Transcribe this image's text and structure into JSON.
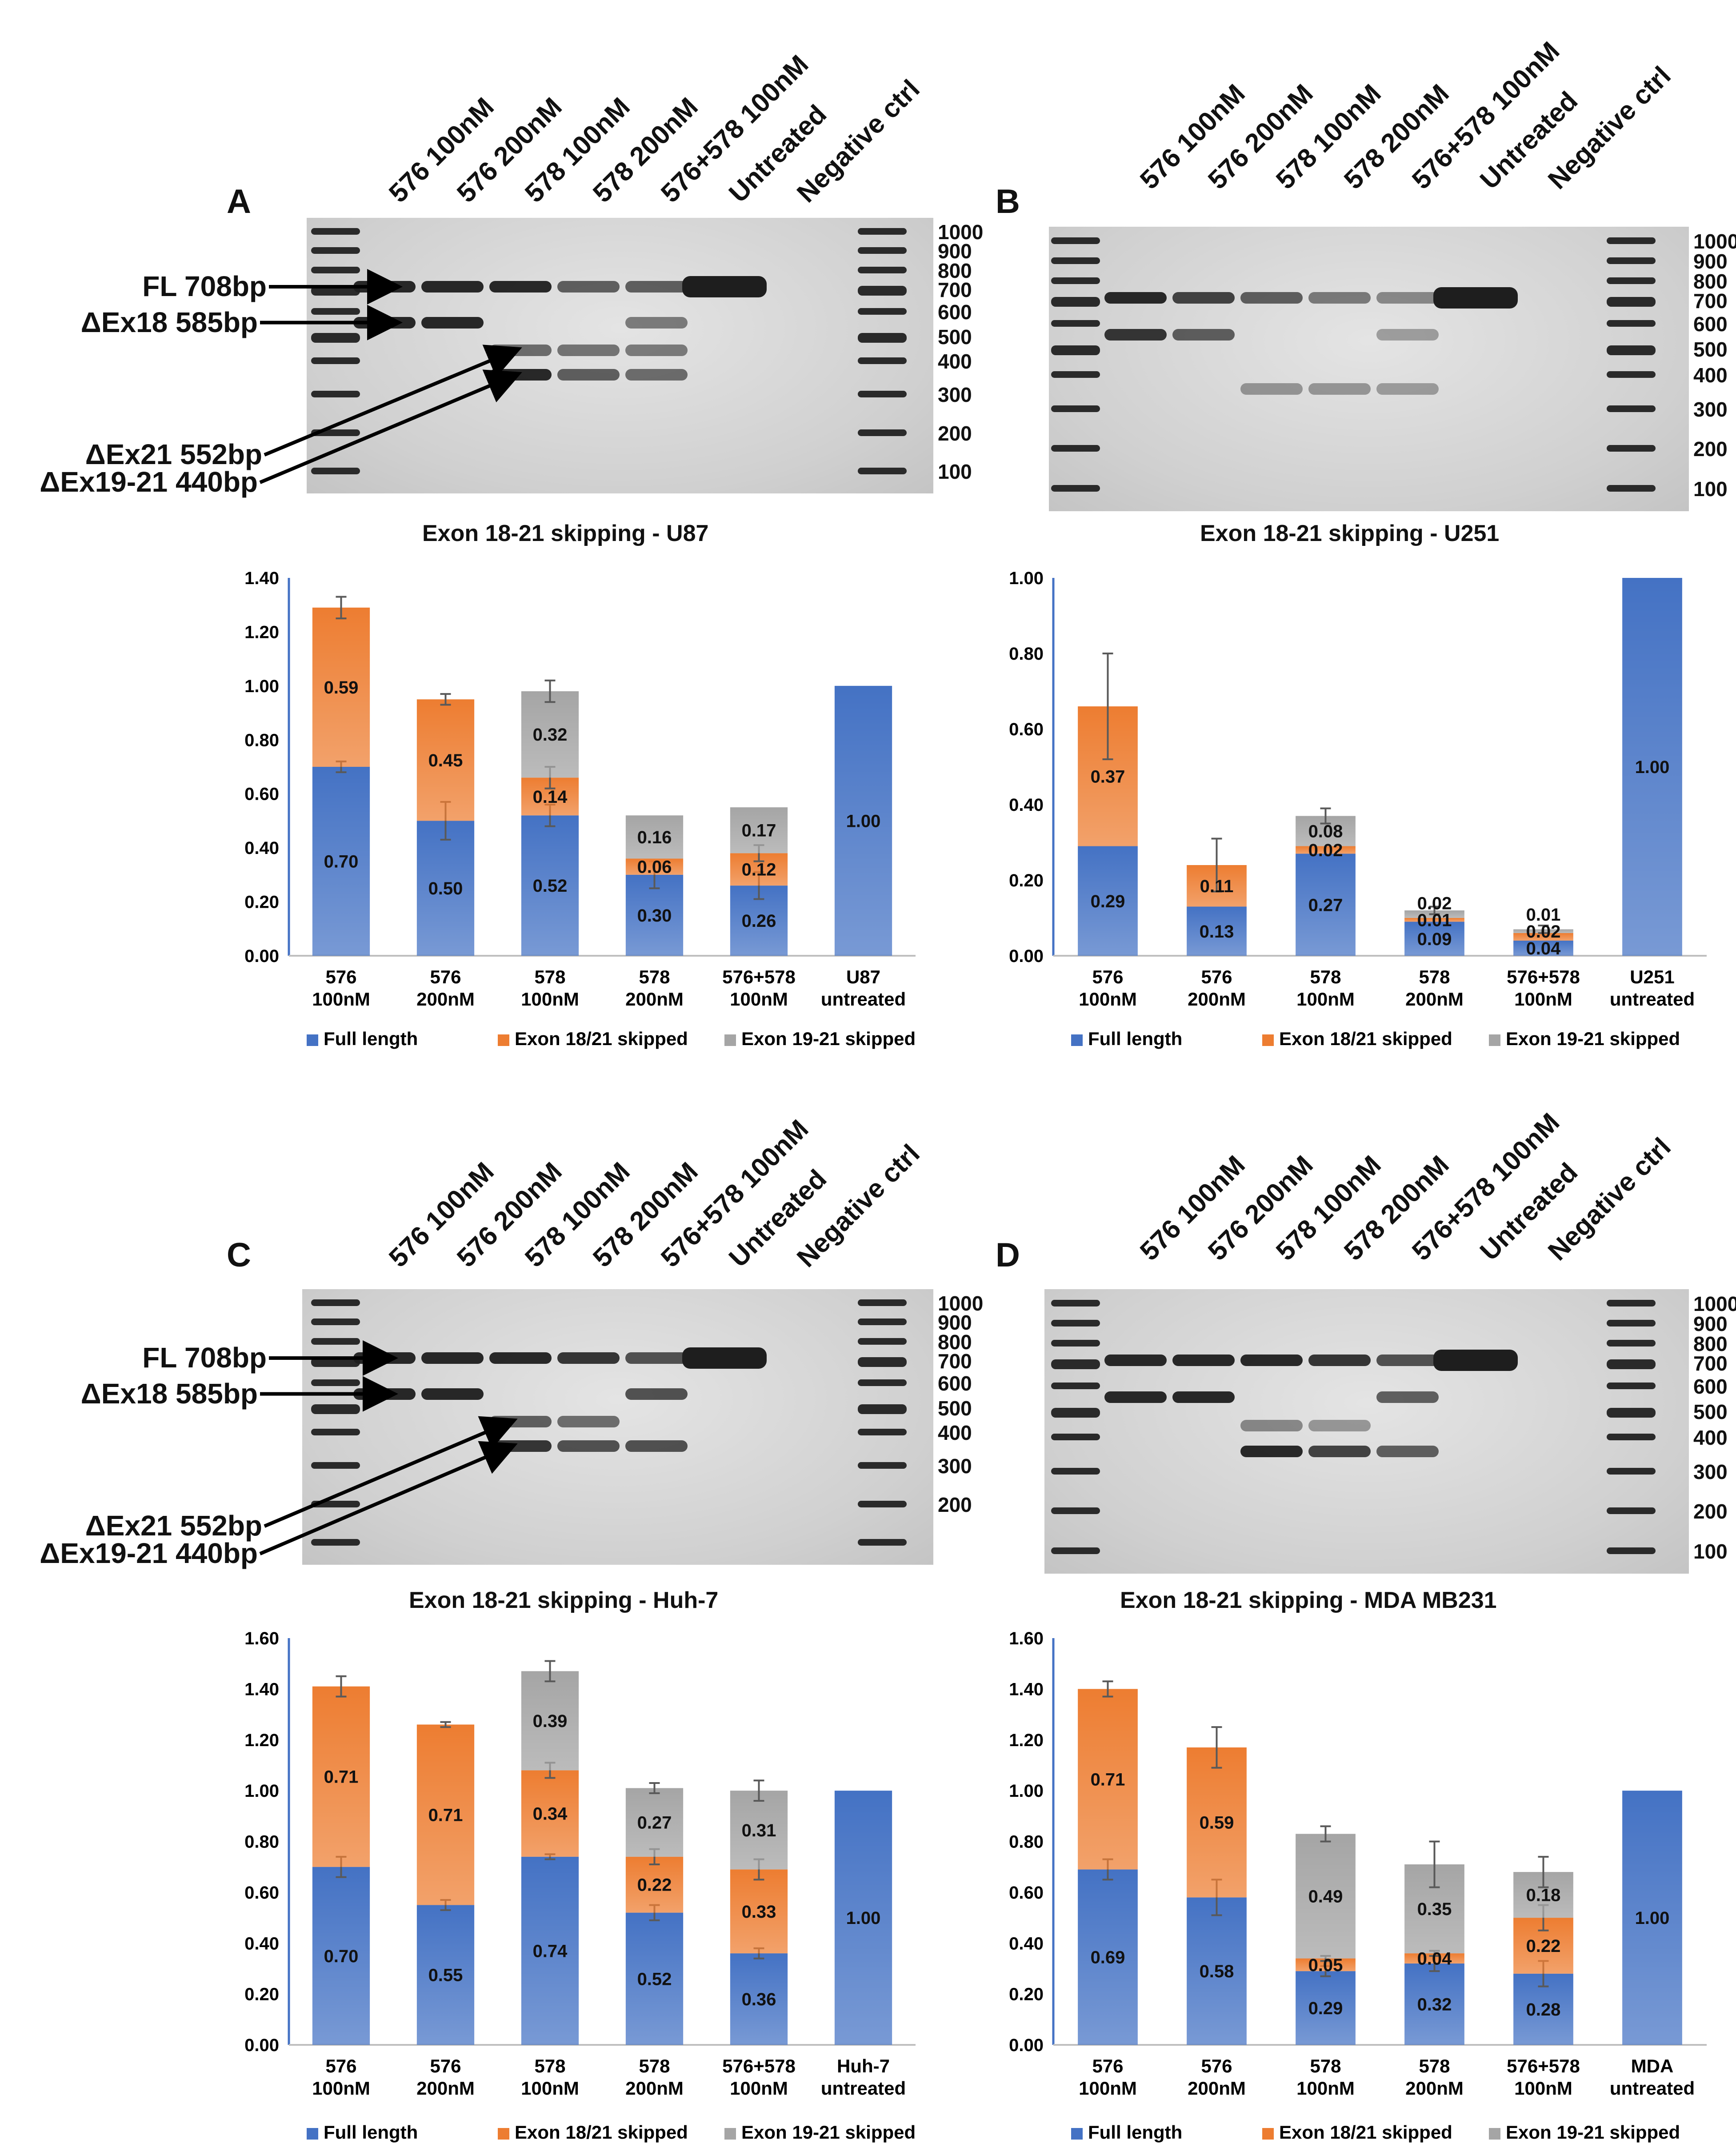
{
  "colors": {
    "full_length": "#4472C4",
    "exon18_21": "#ED7D31",
    "exon19_21": "#A5A5A5",
    "axis": "#4472C4",
    "error_bar": "#595959"
  },
  "lanes": [
    "576 100nM",
    "576 200nM",
    "578 100nM",
    "578 200nM",
    "576+578 100nM",
    "Untreated",
    "Negative ctrl"
  ],
  "band_labels": [
    "FL 708bp",
    "ΔEx18 585bp",
    "ΔEx21 552bp",
    "ΔEx19-21 440bp"
  ],
  "legend": [
    "Full length",
    "Exon 18/21 skipped",
    "Exon 19-21 skipped"
  ],
  "panels": {
    "A": {
      "letter": "A",
      "gel_caption": "Exon 18-21 skipping  - U87",
      "ladder_sizes": [
        "1000",
        "900",
        "800",
        "700",
        "600",
        "500",
        "400",
        "300",
        "200",
        "100"
      ],
      "bands": [
        [
          1,
          1,
          0,
          0
        ],
        [
          1,
          1,
          0,
          0
        ],
        [
          1,
          0,
          0.5,
          1
        ],
        [
          0.6,
          0,
          0.45,
          0.6
        ],
        [
          0.6,
          0.4,
          0.4,
          0.5
        ],
        [
          1.2,
          0,
          0,
          0
        ],
        [
          0,
          0,
          0,
          0
        ]
      ]
    },
    "B": {
      "letter": "B",
      "gel_caption": "Exon 18-21 skipping  - U251",
      "ladder_sizes": [
        "1000",
        "900",
        "800",
        "700",
        "600",
        "500",
        "400",
        "300",
        "200",
        "100"
      ],
      "bands": [
        [
          1,
          0.9,
          0,
          0
        ],
        [
          0.8,
          0.6,
          0,
          0
        ],
        [
          0.6,
          0,
          0,
          0.2
        ],
        [
          0.4,
          0,
          0,
          0.2
        ],
        [
          0.3,
          0.15,
          0,
          0.15
        ],
        [
          1.2,
          0,
          0,
          0
        ],
        [
          0,
          0,
          0,
          0
        ]
      ]
    },
    "C": {
      "letter": "C",
      "gel_caption": "Exon 18-21 skipping  - Huh-7",
      "ladder_sizes": [
        "1000",
        "900",
        "800",
        "700",
        "600",
        "500",
        "400",
        "300",
        "200"
      ],
      "bands": [
        [
          1,
          1,
          0,
          0
        ],
        [
          1,
          1,
          0,
          0
        ],
        [
          1,
          0,
          0.6,
          0.9
        ],
        [
          0.9,
          0,
          0.5,
          0.7
        ],
        [
          0.7,
          0.7,
          0,
          0.7
        ],
        [
          1.2,
          0,
          0,
          0
        ],
        [
          0,
          0,
          0,
          0
        ]
      ]
    },
    "D": {
      "letter": "D",
      "gel_caption": "Exon 18-21 skipping  - MDA MB231",
      "ladder_sizes": [
        "1000",
        "900",
        "800",
        "700",
        "600",
        "500",
        "400",
        "300",
        "200",
        "100"
      ],
      "bands": [
        [
          1,
          1,
          0,
          0
        ],
        [
          1,
          1,
          0,
          0
        ],
        [
          1,
          0,
          0.3,
          1
        ],
        [
          0.9,
          0,
          0.2,
          0.8
        ],
        [
          0.7,
          0.6,
          0,
          0.6
        ],
        [
          1.2,
          0,
          0,
          0
        ],
        [
          0,
          0,
          0,
          0
        ]
      ]
    }
  },
  "chart_data": [
    {
      "type": "bar",
      "stacked": true,
      "panel": "A",
      "categories": [
        [
          "576",
          "100nM"
        ],
        [
          "576",
          "200nM"
        ],
        [
          "578",
          "100nM"
        ],
        [
          "578",
          "200nM"
        ],
        [
          "576+578",
          "100nM"
        ],
        [
          "U87",
          "untreated"
        ]
      ],
      "series": [
        {
          "name": "Full length",
          "values": [
            0.7,
            0.5,
            0.52,
            0.3,
            0.26,
            1.0
          ],
          "labels": [
            "0.70",
            "0.50",
            "0.52",
            "0.30",
            "0.26",
            "1.00"
          ],
          "errors": [
            0.02,
            0.07,
            0.04,
            0.05,
            0.05,
            0.0
          ]
        },
        {
          "name": "Exon 18/21 skipped",
          "values": [
            0.59,
            0.45,
            0.14,
            0.06,
            0.12,
            0
          ],
          "labels": [
            "0.59",
            "0.45",
            "0.14",
            "0.06",
            "0.12",
            ""
          ],
          "errors": [
            0.04,
            0.02,
            0.04,
            0.0,
            0.03,
            0
          ]
        },
        {
          "name": "Exon 19-21 skipped",
          "values": [
            0,
            0,
            0.32,
            0.16,
            0.17,
            0
          ],
          "labels": [
            "",
            "",
            "0.32",
            "0.16",
            "0.17",
            ""
          ],
          "errors": [
            0,
            0,
            0.04,
            0.0,
            0.0,
            0
          ]
        }
      ],
      "ylim": [
        0,
        1.4
      ],
      "yticks": [
        "0.00",
        "0.20",
        "0.40",
        "0.60",
        "0.80",
        "1.00",
        "1.20",
        "1.40"
      ],
      "ystep": 0.2
    },
    {
      "type": "bar",
      "stacked": true,
      "panel": "B",
      "categories": [
        [
          "576",
          "100nM"
        ],
        [
          "576",
          "200nM"
        ],
        [
          "578",
          "100nM"
        ],
        [
          "578",
          "200nM"
        ],
        [
          "576+578",
          "100nM"
        ],
        [
          "U251",
          "untreated"
        ]
      ],
      "series": [
        {
          "name": "Full length",
          "values": [
            0.29,
            0.13,
            0.27,
            0.09,
            0.04,
            1.0
          ],
          "labels": [
            "0.29",
            "0.13",
            "0.27",
            "0.09",
            "0.04",
            "1.00"
          ],
          "errors": [
            0,
            0,
            0,
            0,
            0,
            0
          ]
        },
        {
          "name": "Exon 18/21 skipped",
          "values": [
            0.37,
            0.11,
            0.02,
            0.01,
            0.02,
            0
          ],
          "labels": [
            "0.37",
            "0.11",
            "0.02",
            "0.01",
            "0.02",
            ""
          ],
          "errors": [
            0.14,
            0.07,
            0,
            0,
            0,
            0
          ]
        },
        {
          "name": "Exon 19-21 skipped",
          "values": [
            0,
            0,
            0.08,
            0.02,
            0.01,
            0
          ],
          "labels": [
            "",
            "",
            "0.08",
            "0.02",
            "0.01",
            ""
          ],
          "errors": [
            0,
            0,
            0.02,
            0.01,
            0.01,
            0
          ]
        }
      ],
      "ylim": [
        0,
        1.0
      ],
      "yticks": [
        "0.00",
        "0.20",
        "0.40",
        "0.60",
        "0.80",
        "1.00"
      ],
      "ystep": 0.2
    },
    {
      "type": "bar",
      "stacked": true,
      "panel": "C",
      "categories": [
        [
          "576",
          "100nM"
        ],
        [
          "576",
          "200nM"
        ],
        [
          "578",
          "100nM"
        ],
        [
          "578",
          "200nM"
        ],
        [
          "576+578",
          "100nM"
        ],
        [
          "Huh-7",
          "untreated"
        ]
      ],
      "series": [
        {
          "name": "Full length",
          "values": [
            0.7,
            0.55,
            0.74,
            0.52,
            0.36,
            1.0
          ],
          "labels": [
            "0.70",
            "0.55",
            "0.74",
            "0.52",
            "0.36",
            "1.00"
          ],
          "errors": [
            0.04,
            0.02,
            0.01,
            0.03,
            0.02,
            0.0
          ]
        },
        {
          "name": "Exon 18/21 skipped",
          "values": [
            0.71,
            0.71,
            0.34,
            0.22,
            0.33,
            0
          ],
          "labels": [
            "0.71",
            "0.71",
            "0.34",
            "0.22",
            "0.33",
            ""
          ],
          "errors": [
            0.04,
            0.01,
            0.03,
            0.03,
            0.04,
            0
          ]
        },
        {
          "name": "Exon 19-21 skipped",
          "values": [
            0,
            0,
            0.39,
            0.27,
            0.31,
            0
          ],
          "labels": [
            "",
            "",
            "0.39",
            "0.27",
            "0.31",
            ""
          ],
          "errors": [
            0,
            0,
            0.04,
            0.02,
            0.04,
            0
          ]
        }
      ],
      "ylim": [
        0,
        1.6
      ],
      "yticks": [
        "0.00",
        "0.20",
        "0.40",
        "0.60",
        "0.80",
        "1.00",
        "1.20",
        "1.40",
        "1.60"
      ],
      "ystep": 0.2
    },
    {
      "type": "bar",
      "stacked": true,
      "panel": "D",
      "categories": [
        [
          "576",
          "100nM"
        ],
        [
          "576",
          "200nM"
        ],
        [
          "578",
          "100nM"
        ],
        [
          "578",
          "200nM"
        ],
        [
          "576+578",
          "100nM"
        ],
        [
          "MDA",
          "untreated"
        ]
      ],
      "series": [
        {
          "name": "Full length",
          "values": [
            0.69,
            0.58,
            0.29,
            0.32,
            0.28,
            1.0
          ],
          "labels": [
            "0.69",
            "0.58",
            "0.29",
            "0.32",
            "0.28",
            "1.00"
          ],
          "errors": [
            0.04,
            0.07,
            0.02,
            0.03,
            0.05,
            0.0
          ]
        },
        {
          "name": "Exon 18/21 skipped",
          "values": [
            0.71,
            0.59,
            0.05,
            0.04,
            0.22,
            0
          ],
          "labels": [
            "0.71",
            "0.59",
            "0.05",
            "0.04",
            "0.22",
            ""
          ],
          "errors": [
            0.03,
            0.08,
            0.01,
            0.01,
            0.05,
            0
          ]
        },
        {
          "name": "Exon 19-21 skipped",
          "values": [
            0,
            0,
            0.49,
            0.35,
            0.18,
            0
          ],
          "labels": [
            "",
            "",
            "0.49",
            "0.35",
            "0.18",
            ""
          ],
          "errors": [
            0,
            0,
            0.03,
            0.09,
            0.06,
            0
          ]
        }
      ],
      "ylim": [
        0,
        1.6
      ],
      "yticks": [
        "0.00",
        "0.20",
        "0.40",
        "0.60",
        "0.80",
        "1.00",
        "1.20",
        "1.40",
        "1.60"
      ],
      "ystep": 0.2
    }
  ]
}
